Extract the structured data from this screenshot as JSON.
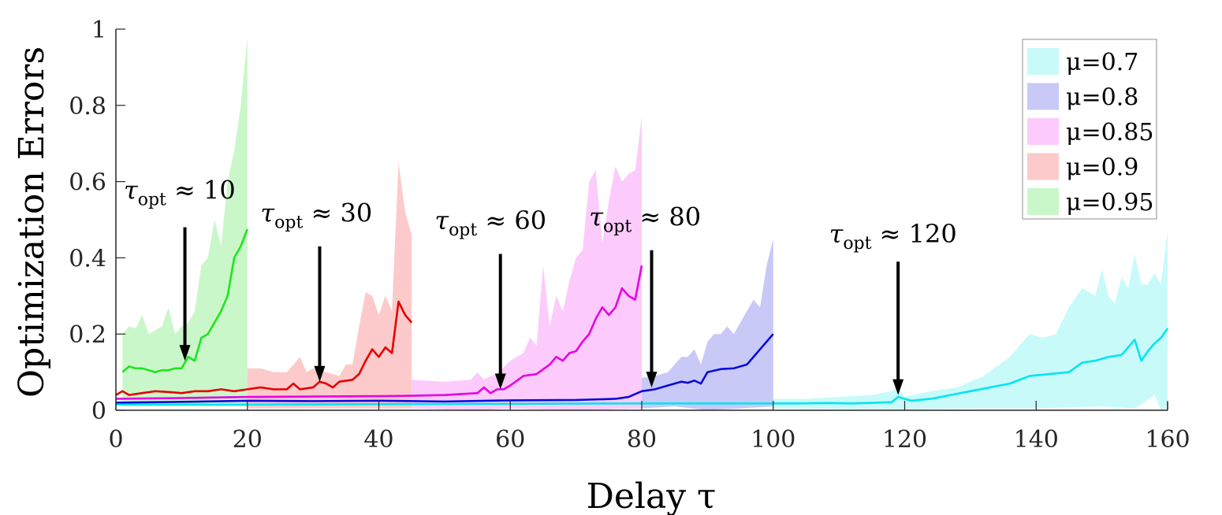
{
  "chart_data": {
    "type": "line",
    "title": "",
    "xlabel": "Delay τ",
    "ylabel": "Optimization Errors",
    "xlim": [
      0,
      160
    ],
    "ylim": [
      0,
      1
    ],
    "xticks": [
      0,
      20,
      40,
      60,
      80,
      100,
      120,
      140,
      160
    ],
    "xtick_labels": [
      "0",
      "20",
      "40",
      "60",
      "80",
      "100",
      "120",
      "140",
      "160"
    ],
    "yticks": [
      0,
      0.2,
      0.4,
      0.6,
      0.8,
      1
    ],
    "ytick_labels": [
      "0",
      "0.2",
      "0.4",
      "0.6",
      "0.8",
      "1"
    ],
    "grid": false,
    "legend_position": "upper right",
    "series": [
      {
        "name": "μ=0.7",
        "line_color": "#00e5ee",
        "band_color": "#c8fafa",
        "x_range": [
          100,
          160
        ],
        "mean": {
          "x": [
            0,
            20,
            40,
            60,
            80,
            100,
            104,
            108,
            112,
            116,
            118,
            119,
            121,
            124,
            127,
            130,
            133,
            136,
            139,
            142,
            145,
            147,
            149,
            151,
            153,
            155,
            156,
            157,
            158,
            159,
            160
          ],
          "y": [
            0.015,
            0.015,
            0.016,
            0.017,
            0.018,
            0.018,
            0.018,
            0.019,
            0.018,
            0.02,
            0.021,
            0.035,
            0.025,
            0.03,
            0.04,
            0.05,
            0.06,
            0.07,
            0.09,
            0.095,
            0.1,
            0.125,
            0.13,
            0.14,
            0.145,
            0.185,
            0.13,
            0.155,
            0.175,
            0.19,
            0.215
          ]
        },
        "upper": {
          "x": [
            100,
            105,
            110,
            115,
            118,
            119,
            120,
            124,
            128,
            132,
            136,
            139,
            141,
            143,
            145,
            147,
            149,
            150,
            151,
            152,
            153,
            154,
            155,
            156,
            157,
            158,
            159,
            160
          ],
          "y": [
            0.03,
            0.03,
            0.035,
            0.04,
            0.05,
            0.06,
            0.035,
            0.05,
            0.06,
            0.09,
            0.14,
            0.2,
            0.19,
            0.2,
            0.27,
            0.32,
            0.3,
            0.37,
            0.3,
            0.28,
            0.35,
            0.32,
            0.41,
            0.33,
            0.33,
            0.36,
            0.33,
            0.47
          ]
        },
        "lower": {
          "x": [
            100,
            120,
            130,
            140,
            150,
            155,
            158,
            159,
            160
          ],
          "y": [
            0.005,
            0.003,
            0.005,
            0.005,
            0.01,
            0.005,
            0.04,
            0.0,
            0.01
          ]
        }
      },
      {
        "name": "μ=0.8",
        "line_color": "#0a0adc",
        "band_color": "#c9c9f7",
        "x_range": [
          80,
          100
        ],
        "mean": {
          "x": [
            0,
            10,
            20,
            30,
            40,
            50,
            60,
            70,
            76,
            78,
            80,
            82,
            84,
            86,
            87,
            88,
            89,
            90,
            92,
            94,
            96,
            97,
            98,
            99,
            100
          ],
          "y": [
            0.02,
            0.022,
            0.025,
            0.024,
            0.025,
            0.023,
            0.026,
            0.027,
            0.03,
            0.035,
            0.05,
            0.055,
            0.065,
            0.075,
            0.072,
            0.078,
            0.07,
            0.1,
            0.108,
            0.11,
            0.12,
            0.14,
            0.16,
            0.18,
            0.2
          ]
        },
        "upper": {
          "x": [
            80,
            82,
            84,
            86,
            87,
            88,
            89,
            90,
            91,
            92,
            93,
            94,
            95,
            96,
            97,
            98,
            99,
            100
          ],
          "y": [
            0.085,
            0.09,
            0.1,
            0.14,
            0.14,
            0.16,
            0.12,
            0.18,
            0.2,
            0.2,
            0.22,
            0.2,
            0.23,
            0.26,
            0.29,
            0.27,
            0.38,
            0.45
          ]
        },
        "lower": {
          "x": [
            80,
            85,
            90,
            95,
            100
          ],
          "y": [
            0.005,
            0.01,
            0.0,
            0.005,
            0.01
          ]
        }
      },
      {
        "name": "μ=0.85",
        "line_color": "#e600e6",
        "band_color": "#fccbfc",
        "x_range": [
          45,
          80
        ],
        "mean": {
          "x": [
            0,
            10,
            20,
            30,
            40,
            45,
            50,
            55,
            56,
            57,
            58,
            59,
            60,
            62,
            64,
            66,
            67,
            68,
            69,
            70,
            71,
            72,
            73,
            74,
            75,
            76,
            77,
            78,
            79,
            80
          ],
          "y": [
            0.03,
            0.032,
            0.035,
            0.036,
            0.037,
            0.038,
            0.04,
            0.045,
            0.06,
            0.045,
            0.055,
            0.055,
            0.065,
            0.09,
            0.095,
            0.12,
            0.14,
            0.13,
            0.15,
            0.155,
            0.18,
            0.2,
            0.24,
            0.27,
            0.25,
            0.27,
            0.32,
            0.3,
            0.29,
            0.38
          ]
        },
        "upper": {
          "x": [
            45,
            50,
            54,
            55,
            56,
            57,
            58,
            60,
            62,
            63,
            64,
            65,
            66,
            67,
            68,
            69,
            70,
            71,
            72,
            73,
            74,
            75,
            76,
            77,
            78,
            79,
            80
          ],
          "y": [
            0.08,
            0.075,
            0.08,
            0.1,
            0.08,
            0.09,
            0.095,
            0.13,
            0.15,
            0.19,
            0.17,
            0.38,
            0.22,
            0.3,
            0.26,
            0.34,
            0.4,
            0.42,
            0.6,
            0.63,
            0.44,
            0.55,
            0.64,
            0.6,
            0.62,
            0.63,
            0.77
          ]
        },
        "lower": {
          "x": [
            45,
            55,
            60,
            70,
            80
          ],
          "y": [
            0.005,
            0.0,
            0.005,
            0.0,
            0.005
          ]
        }
      },
      {
        "name": "μ=0.9",
        "line_color": "#e60000",
        "band_color": "#fccaca",
        "x_range": [
          20,
          45
        ],
        "mean": {
          "x": [
            0,
            1,
            2,
            4,
            6,
            8,
            10,
            12,
            14,
            16,
            18,
            20,
            22,
            24,
            26,
            27,
            28,
            30,
            31,
            32,
            33,
            34,
            36,
            37,
            38,
            39,
            40,
            41,
            42,
            43,
            44,
            45
          ],
          "y": [
            0.04,
            0.05,
            0.04,
            0.045,
            0.05,
            0.048,
            0.045,
            0.05,
            0.05,
            0.055,
            0.05,
            0.055,
            0.06,
            0.055,
            0.055,
            0.07,
            0.055,
            0.06,
            0.075,
            0.07,
            0.06,
            0.075,
            0.08,
            0.095,
            0.13,
            0.16,
            0.14,
            0.165,
            0.15,
            0.285,
            0.25,
            0.23
          ]
        },
        "upper": {
          "x": [
            20,
            22,
            24,
            26,
            28,
            29,
            30,
            32,
            34,
            35,
            36,
            37,
            38,
            39,
            40,
            41,
            42,
            43,
            44,
            45
          ],
          "y": [
            0.11,
            0.11,
            0.1,
            0.1,
            0.14,
            0.1,
            0.11,
            0.1,
            0.09,
            0.12,
            0.12,
            0.22,
            0.31,
            0.3,
            0.25,
            0.3,
            0.26,
            0.65,
            0.52,
            0.46
          ]
        },
        "lower": {
          "x": [
            20,
            30,
            40,
            45
          ],
          "y": [
            0.005,
            0.005,
            0.005,
            0.005
          ]
        }
      },
      {
        "name": "μ=0.95",
        "line_color": "#1ee61e",
        "band_color": "#c9f7c9",
        "x_range": [
          1,
          20
        ],
        "mean": {
          "x": [
            1,
            2,
            3,
            4,
            6,
            7,
            8,
            9,
            10,
            11,
            12,
            13,
            14,
            15,
            16,
            17,
            18,
            19,
            20
          ],
          "y": [
            0.1,
            0.115,
            0.11,
            0.11,
            0.1,
            0.105,
            0.105,
            0.11,
            0.11,
            0.14,
            0.13,
            0.19,
            0.2,
            0.23,
            0.26,
            0.3,
            0.4,
            0.43,
            0.475
          ]
        },
        "upper": {
          "x": [
            1,
            2,
            3,
            4,
            5,
            6,
            7,
            8,
            9,
            10,
            11,
            12,
            13,
            14,
            15,
            16,
            17,
            18,
            19,
            20
          ],
          "y": [
            0.2,
            0.22,
            0.215,
            0.25,
            0.2,
            0.21,
            0.22,
            0.27,
            0.2,
            0.22,
            0.23,
            0.26,
            0.38,
            0.4,
            0.5,
            0.43,
            0.6,
            0.68,
            0.8,
            0.98
          ]
        },
        "lower": {
          "x": [
            1,
            10,
            20
          ],
          "y": [
            0.01,
            0.01,
            0.01
          ]
        }
      }
    ],
    "annotations": [
      {
        "text_main": "τ",
        "text_sub": "opt",
        "text_rest": " ≈ 10",
        "label_x": 1.2,
        "label_y": 0.555,
        "arrow_x": 10.5,
        "arrow_from_y": 0.48,
        "arrow_to_y": 0.13
      },
      {
        "text_main": "τ",
        "text_sub": "opt",
        "text_rest": " ≈ 30",
        "label_x": 22.0,
        "label_y": 0.495,
        "arrow_x": 31.0,
        "arrow_from_y": 0.43,
        "arrow_to_y": 0.075
      },
      {
        "text_main": "τ",
        "text_sub": "opt",
        "text_rest": " ≈ 60",
        "label_x": 48.5,
        "label_y": 0.475,
        "arrow_x": 58.5,
        "arrow_from_y": 0.41,
        "arrow_to_y": 0.055
      },
      {
        "text_main": "τ",
        "text_sub": "opt",
        "text_rest": " ≈ 80",
        "label_x": 72.0,
        "label_y": 0.485,
        "arrow_x": 81.5,
        "arrow_from_y": 0.42,
        "arrow_to_y": 0.06
      },
      {
        "text_main": "τ",
        "text_sub": "opt",
        "text_rest": " ≈ 120",
        "label_x": 108.5,
        "label_y": 0.44,
        "arrow_x": 119.0,
        "arrow_from_y": 0.39,
        "arrow_to_y": 0.04
      }
    ]
  },
  "axes": {
    "xlabel": "Delay τ",
    "ylabel": "Optimization Errors"
  },
  "legend": {
    "items": [
      {
        "label": "μ=0.7",
        "color": "#c8fafa"
      },
      {
        "label": "μ=0.8",
        "color": "#c9c9f7"
      },
      {
        "label": "μ=0.85",
        "color": "#fccbfc"
      },
      {
        "label": "μ=0.9",
        "color": "#fccaca"
      },
      {
        "label": "μ=0.95",
        "color": "#c9f7c9"
      }
    ]
  }
}
